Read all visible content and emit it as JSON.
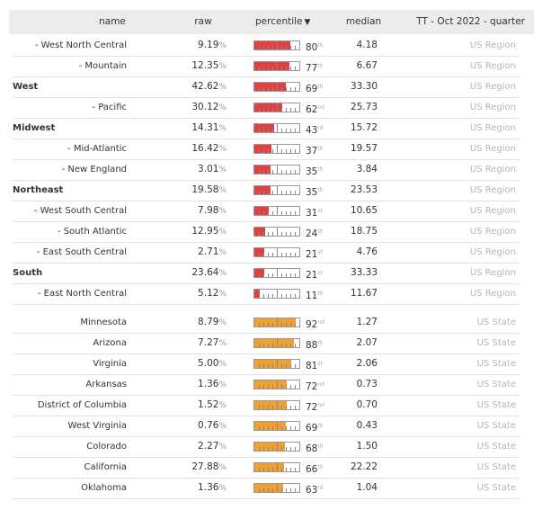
{
  "header": {
    "name": "name",
    "raw": "raw",
    "percentile": "percentile",
    "median": "median",
    "tt": "TT - Oct 2022 - quarter"
  },
  "colors": {
    "region_bar": "#e04040",
    "state_bar": "#f0a030"
  },
  "rows": [
    {
      "name": "- West North Central",
      "raw": "9.19",
      "percentile": 80,
      "suffix": "th",
      "median": "4.18",
      "type": "US Region",
      "is_region": false
    },
    {
      "name": "- Mountain",
      "raw": "12.35",
      "percentile": 77,
      "suffix": "th",
      "median": "6.67",
      "type": "US Region",
      "is_region": false
    },
    {
      "name": "West",
      "raw": "42.62",
      "percentile": 69,
      "suffix": "th",
      "median": "33.30",
      "type": "US Region",
      "is_region": true
    },
    {
      "name": "- Pacific",
      "raw": "30.12",
      "percentile": 62,
      "suffix": "nd",
      "median": "25.73",
      "type": "US Region",
      "is_region": false
    },
    {
      "name": "Midwest",
      "raw": "14.31",
      "percentile": 43,
      "suffix": "rd",
      "median": "15.72",
      "type": "US Region",
      "is_region": true
    },
    {
      "name": "- Mid-Atlantic",
      "raw": "16.42",
      "percentile": 37,
      "suffix": "th",
      "median": "19.57",
      "type": "US Region",
      "is_region": false
    },
    {
      "name": "- New England",
      "raw": "3.01",
      "percentile": 35,
      "suffix": "th",
      "median": "3.84",
      "type": "US Region",
      "is_region": false
    },
    {
      "name": "Northeast",
      "raw": "19.58",
      "percentile": 35,
      "suffix": "th",
      "median": "23.53",
      "type": "US Region",
      "is_region": true
    },
    {
      "name": "- West South Central",
      "raw": "7.98",
      "percentile": 31,
      "suffix": "st",
      "median": "10.65",
      "type": "US Region",
      "is_region": false
    },
    {
      "name": "- South Atlantic",
      "raw": "12.95",
      "percentile": 24,
      "suffix": "th",
      "median": "18.75",
      "type": "US Region",
      "is_region": false
    },
    {
      "name": "- East South Central",
      "raw": "2.71",
      "percentile": 21,
      "suffix": "st",
      "median": "4.76",
      "type": "US Region",
      "is_region": false
    },
    {
      "name": "South",
      "raw": "23.64",
      "percentile": 21,
      "suffix": "st",
      "median": "33.33",
      "type": "US Region",
      "is_region": true
    },
    {
      "name": "- East North Central",
      "raw": "5.12",
      "percentile": 11,
      "suffix": "th",
      "median": "11.67",
      "type": "US Region",
      "is_region": false
    },
    {
      "name": "Minnesota",
      "raw": "8.79",
      "percentile": 92,
      "suffix": "nd",
      "median": "1.27",
      "type": "US State",
      "is_region": false
    },
    {
      "name": "Arizona",
      "raw": "7.27",
      "percentile": 88,
      "suffix": "th",
      "median": "2.07",
      "type": "US State",
      "is_region": false
    },
    {
      "name": "Virginia",
      "raw": "5.00",
      "percentile": 81,
      "suffix": "st",
      "median": "2.06",
      "type": "US State",
      "is_region": false
    },
    {
      "name": "Arkansas",
      "raw": "1.36",
      "percentile": 72,
      "suffix": "nd",
      "median": "0.73",
      "type": "US State",
      "is_region": false
    },
    {
      "name": "District of Columbia",
      "raw": "1.52",
      "percentile": 72,
      "suffix": "nd",
      "median": "0.70",
      "type": "US State",
      "is_region": false
    },
    {
      "name": "West Virginia",
      "raw": "0.76",
      "percentile": 69,
      "suffix": "th",
      "median": "0.43",
      "type": "US State",
      "is_region": false
    },
    {
      "name": "Colorado",
      "raw": "2.27",
      "percentile": 68,
      "suffix": "th",
      "median": "1.50",
      "type": "US State",
      "is_region": false
    },
    {
      "name": "California",
      "raw": "27.88",
      "percentile": 66,
      "suffix": "th",
      "median": "22.22",
      "type": "US State",
      "is_region": false
    },
    {
      "name": "Oklahoma",
      "raw": "1.36",
      "percentile": 63,
      "suffix": "rd",
      "median": "1.04",
      "type": "US State",
      "is_region": false
    }
  ]
}
